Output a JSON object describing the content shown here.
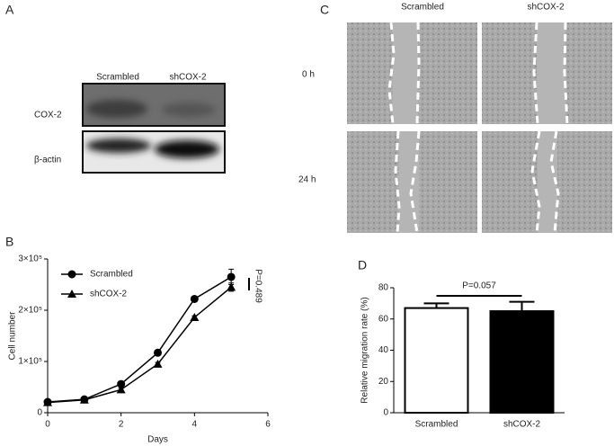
{
  "panel_labels": [
    "A",
    "B",
    "C",
    "D"
  ],
  "blot": {
    "columns": [
      "Scrambled",
      "shCOX-2"
    ],
    "rows": [
      "COX-2",
      "β-actin"
    ]
  },
  "wound": {
    "columns": [
      "Scrambled",
      "shCOX-2"
    ],
    "rows": [
      "0 h",
      "24 h"
    ]
  },
  "chart_data": [
    {
      "type": "line",
      "x_label": "Days",
      "y_label": "Cell number",
      "annotation": "P=0.489",
      "x": [
        0,
        1,
        2,
        3,
        4,
        5
      ],
      "xlim": [
        0,
        6
      ],
      "xticks": [
        0,
        2,
        4,
        6
      ],
      "ylim": [
        0,
        300000
      ],
      "yticks": [
        0,
        {
          "value": 100000,
          "label": "1×10⁵"
        },
        {
          "value": 200000,
          "label": "2×10⁵"
        },
        {
          "value": 300000,
          "label": "3×10⁵"
        }
      ],
      "legend": "upper left",
      "series": [
        {
          "name": "Scrambled",
          "color": "#000000",
          "marker": "circle",
          "values": [
            21000,
            26000,
            56000,
            117000,
            222000,
            265000
          ],
          "errors": [
            2000,
            2000,
            3000,
            3000,
            4000,
            15000
          ]
        },
        {
          "name": "shCOX-2",
          "color": "#000000",
          "marker": "triangle",
          "values": [
            20000,
            25000,
            45000,
            95000,
            186000,
            245000
          ],
          "errors": [
            2000,
            2000,
            3000,
            3000,
            3000,
            8000
          ]
        }
      ]
    },
    {
      "type": "bar",
      "y_label": "Relative migration rate (%)",
      "annotation": "P=0.057",
      "categories": [
        "Scrambled",
        "shCOX-2"
      ],
      "values": [
        67,
        65
      ],
      "errors": [
        3,
        6
      ],
      "colors": [
        "#ffffff",
        "#000000"
      ],
      "ylim": [
        0,
        80
      ],
      "yticks": [
        0,
        20,
        40,
        60,
        80
      ]
    }
  ]
}
